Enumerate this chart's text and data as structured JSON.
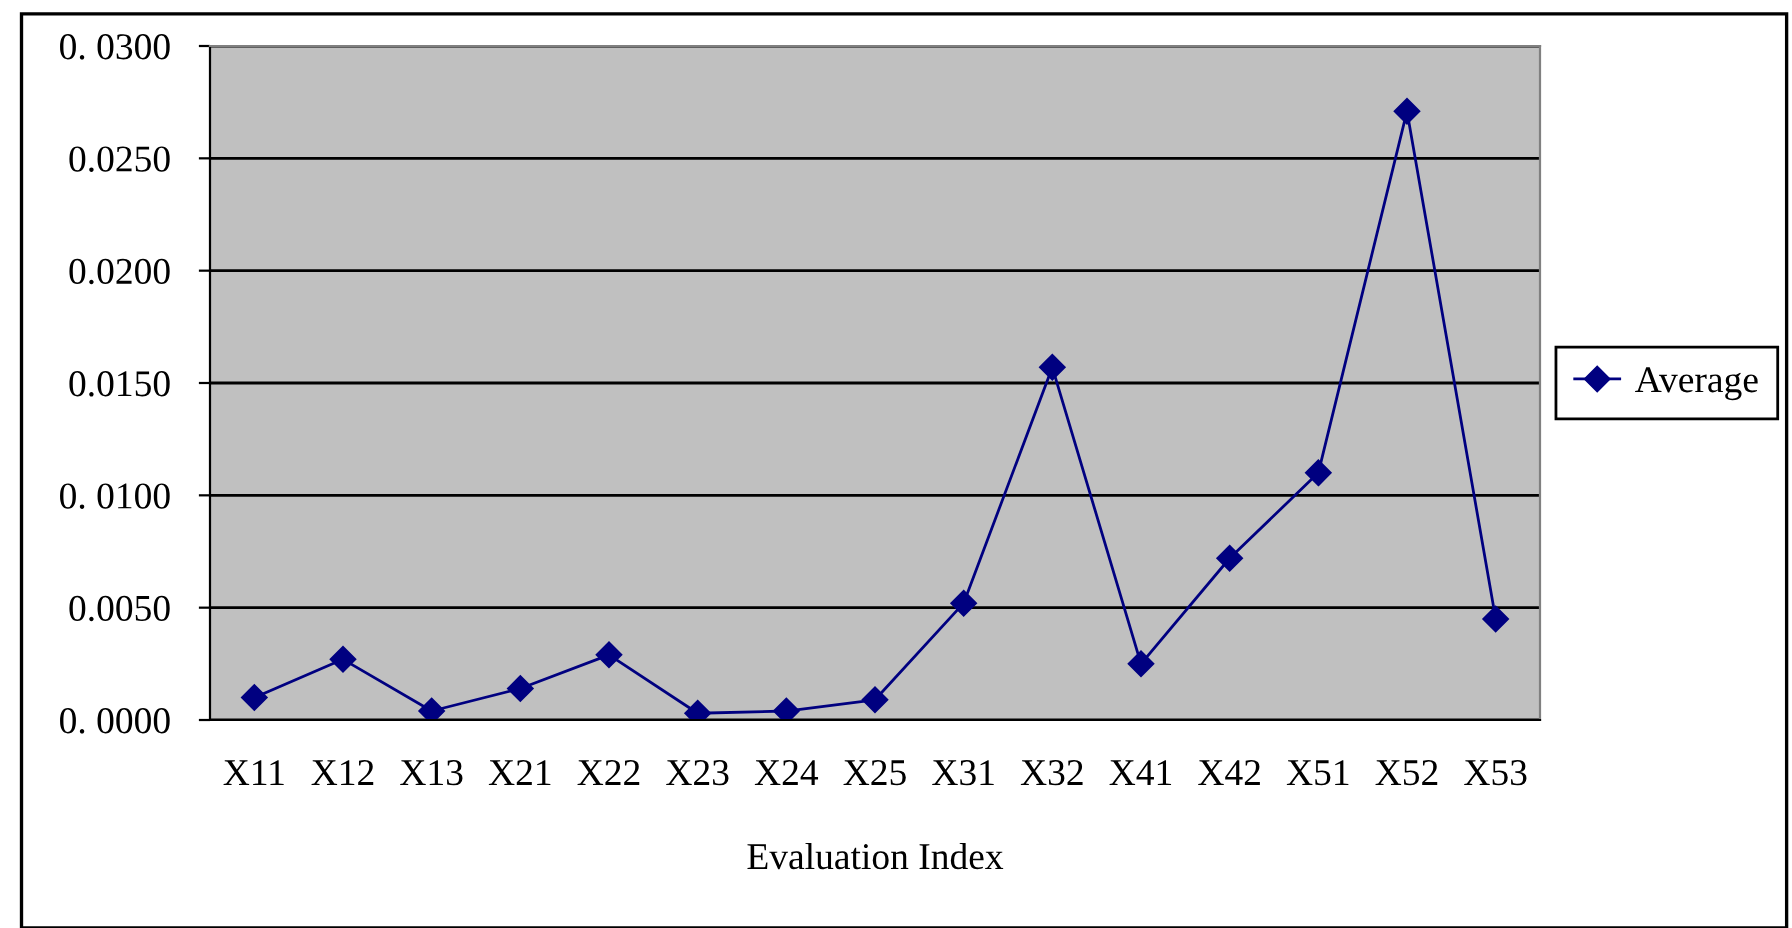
{
  "chart_data": {
    "type": "line",
    "xlabel": "Evaluation Index",
    "categories": [
      "X11",
      "X12",
      "X13",
      "X21",
      "X22",
      "X23",
      "X24",
      "X25",
      "X31",
      "X32",
      "X41",
      "X42",
      "X51",
      "X52",
      "X53"
    ],
    "series": [
      {
        "name": "Average",
        "color": "#000080",
        "values": [
          0.001,
          0.0027,
          0.0004,
          0.0014,
          0.0029,
          0.0003,
          0.0004,
          0.0009,
          0.0052,
          0.0157,
          0.0025,
          0.0072,
          0.011,
          0.0271,
          0.0045
        ]
      }
    ],
    "ylim": [
      0,
      0.03
    ],
    "yticks": [
      {
        "value": 0,
        "label": "0. 0000"
      },
      {
        "value": 0.005,
        "label": "0.0050"
      },
      {
        "value": 0.01,
        "label": "0. 0100"
      },
      {
        "value": 0.015,
        "label": "0.0150"
      },
      {
        "value": 0.02,
        "label": "0.0200"
      },
      {
        "value": 0.025,
        "label": "0.0250"
      },
      {
        "value": 0.03,
        "label": "0. 0300"
      }
    ],
    "grid": "y",
    "legend": "right",
    "marker": "diamond",
    "line_style": "solid"
  }
}
